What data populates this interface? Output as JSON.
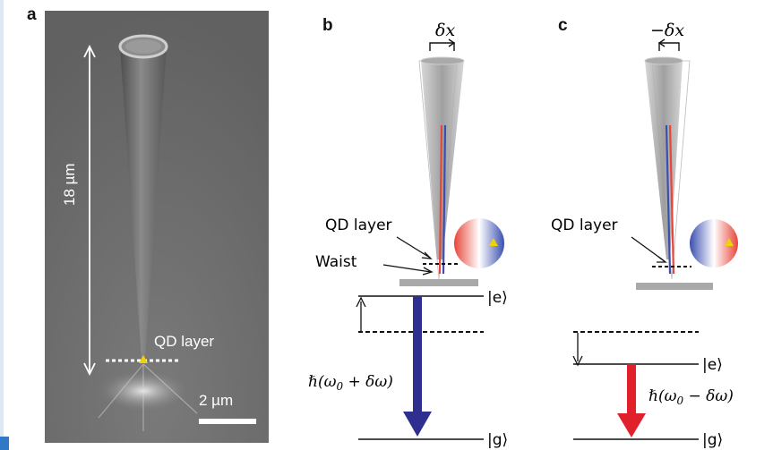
{
  "panel_a": {
    "label": "a",
    "height_label": "18 µm",
    "qd_label": "QD layer",
    "scale_label": "2 µm"
  },
  "panel_b": {
    "label": "b",
    "displacement_label": "δx",
    "qd_label": "QD layer",
    "waist_label": "Waist",
    "excited_state": "|e⟩",
    "ground_state": "|g⟩",
    "energy_label": "ℏ(ω",
    "energy_subscript": "0",
    "energy_suffix": " + δω)",
    "arrow_color": "#2e2f8f"
  },
  "panel_c": {
    "label": "c",
    "displacement_label": "−δx",
    "qd_label": "QD layer",
    "excited_state": "|e⟩",
    "ground_state": "|g⟩",
    "energy_label": "ℏ(ω",
    "energy_subscript": "0",
    "energy_suffix": " − δω)",
    "arrow_color": "#e0202a"
  },
  "colors": {
    "strain_red": "#e8463a",
    "strain_blue": "#3b4fb0",
    "qd_marker": "#f2d200"
  }
}
